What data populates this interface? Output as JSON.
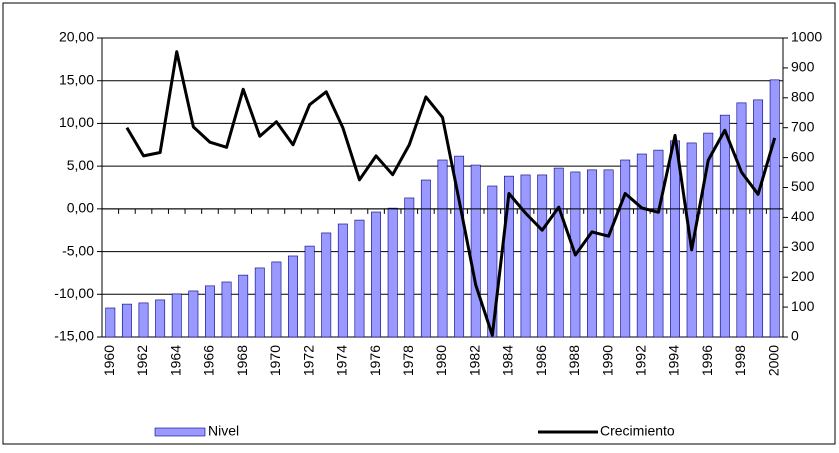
{
  "chart_data": {
    "type": "bar-line",
    "categories": [
      "1960",
      null,
      "1962",
      null,
      "1964",
      null,
      "1966",
      null,
      "1968",
      null,
      "1970",
      null,
      "1972",
      null,
      "1974",
      null,
      "1976",
      null,
      "1978",
      null,
      "1980",
      null,
      "1982",
      null,
      "1984",
      null,
      "1986",
      null,
      "1988",
      null,
      "1990",
      null,
      "1992",
      null,
      "1994",
      null,
      "1996",
      null,
      "1998",
      null,
      "2000"
    ],
    "series": [
      {
        "name": "Nivel",
        "type": "bar",
        "axis": "y2",
        "color": "#9999ff",
        "values": [
          97,
          110,
          114,
          124,
          144,
          154,
          171,
          184,
          207,
          231,
          251,
          271,
          304,
          348,
          378,
          391,
          418,
          431,
          465,
          525,
          592,
          605,
          575,
          505,
          538,
          542,
          542,
          565,
          552,
          559,
          559,
          592,
          612,
          625,
          656,
          649,
          682,
          742,
          783,
          793,
          860
        ]
      },
      {
        "name": "Crecimiento",
        "type": "line",
        "axis": "y",
        "color": "#000000",
        "values": [
          null,
          9.5,
          6.2,
          6.6,
          18.4,
          9.6,
          7.8,
          7.2,
          14.0,
          8.5,
          10.2,
          7.5,
          12.2,
          13.7,
          9.5,
          3.4,
          6.2,
          4.0,
          7.5,
          13.1,
          10.7,
          1.0,
          -8.9,
          -14.8,
          1.8,
          -0.5,
          -2.5,
          0.2,
          -5.4,
          -2.7,
          -3.2,
          1.8,
          0.1,
          -0.4,
          8.6,
          -4.8,
          5.7,
          9.2,
          4.3,
          1.7,
          8.3
        ]
      }
    ],
    "ylim": [
      -15,
      20
    ],
    "yticks": [
      {
        "value": -15,
        "label": "-15,00"
      },
      {
        "value": -10,
        "label": "-10,00"
      },
      {
        "value": -5,
        "label": "-5,00"
      },
      {
        "value": 0,
        "label": "0,00"
      },
      {
        "value": 5,
        "label": "5,00"
      },
      {
        "value": 10,
        "label": "10,00"
      },
      {
        "value": 15,
        "label": "15,00"
      },
      {
        "value": 20,
        "label": "20,00"
      }
    ],
    "y2lim": [
      0,
      1000
    ],
    "y2ticks": [
      0,
      100,
      200,
      300,
      400,
      500,
      600,
      700,
      800,
      900,
      1000
    ],
    "grid": true,
    "legend": "bottom"
  }
}
